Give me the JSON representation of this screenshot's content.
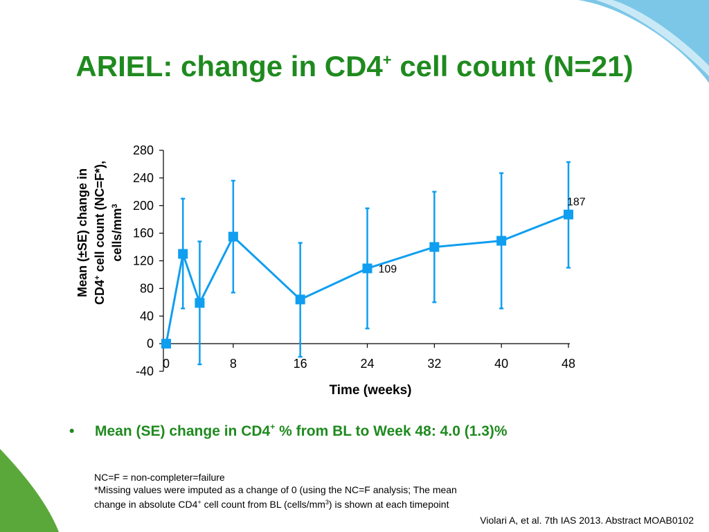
{
  "title": {
    "main": "ARIEL: change in CD4",
    "sup": "+",
    "rest": " cell count (N=21)"
  },
  "colors": {
    "title": "#1f8a1f",
    "series": "#0f9ef0",
    "axis": "#000000",
    "deco_blue": "#7cc7e8",
    "deco_green": "#5aa83a"
  },
  "y_axis_label": {
    "line1": "Mean (±SE) change in",
    "line2a": "CD4",
    "line2sup": "+",
    "line2b": " cell count (NC=F*),",
    "line3a": "cells/mm",
    "line3sup": "3"
  },
  "x_axis_label": "Time (weeks)",
  "bullet": {
    "text_a": "Mean (SE) change in CD4",
    "sup": "+",
    "text_b": " % from BL to Week 48: 4.0 (1.3)%"
  },
  "footnotes": {
    "line1": "NC=F = non-completer=failure",
    "line2": "*Missing values were imputed as a change of 0 (using the NC=F analysis; The mean",
    "line3a": "change in absolute CD4",
    "line3sup": "+",
    "line3b": " cell count from BL (cells/mm",
    "line3sup2": "3",
    "line3c": ") is shown at each timepoint"
  },
  "citation": "Violari A, et al. 7th IAS 2013. Abstract MOAB0102",
  "chart_data": {
    "type": "line",
    "title": "ARIEL: change in CD4+ cell count (N=21)",
    "xlabel": "Time (weeks)",
    "ylabel": "Mean (±SE) change in CD4+ cell count (NC=F*), cells/mm3",
    "xlim": [
      0,
      48
    ],
    "ylim": [
      -40,
      280
    ],
    "x_ticks": [
      0,
      8,
      16,
      24,
      32,
      40,
      48
    ],
    "y_ticks": [
      -40,
      0,
      40,
      80,
      120,
      160,
      200,
      240,
      280
    ],
    "grid": false,
    "series": [
      {
        "x": [
          0,
          2,
          4,
          8,
          16,
          24,
          32,
          40,
          48
        ],
        "y": [
          0,
          130,
          59,
          155,
          64,
          109,
          140,
          149,
          187
        ],
        "err_low": [
          0,
          51,
          -30,
          74,
          -19,
          22,
          60,
          51,
          110
        ],
        "err_high": [
          0,
          210,
          148,
          236,
          146,
          196,
          220,
          247,
          263
        ]
      }
    ],
    "data_labels": [
      {
        "x": 24,
        "y": 109,
        "text": "109"
      },
      {
        "x": 48,
        "y": 187,
        "text": "187"
      }
    ]
  }
}
